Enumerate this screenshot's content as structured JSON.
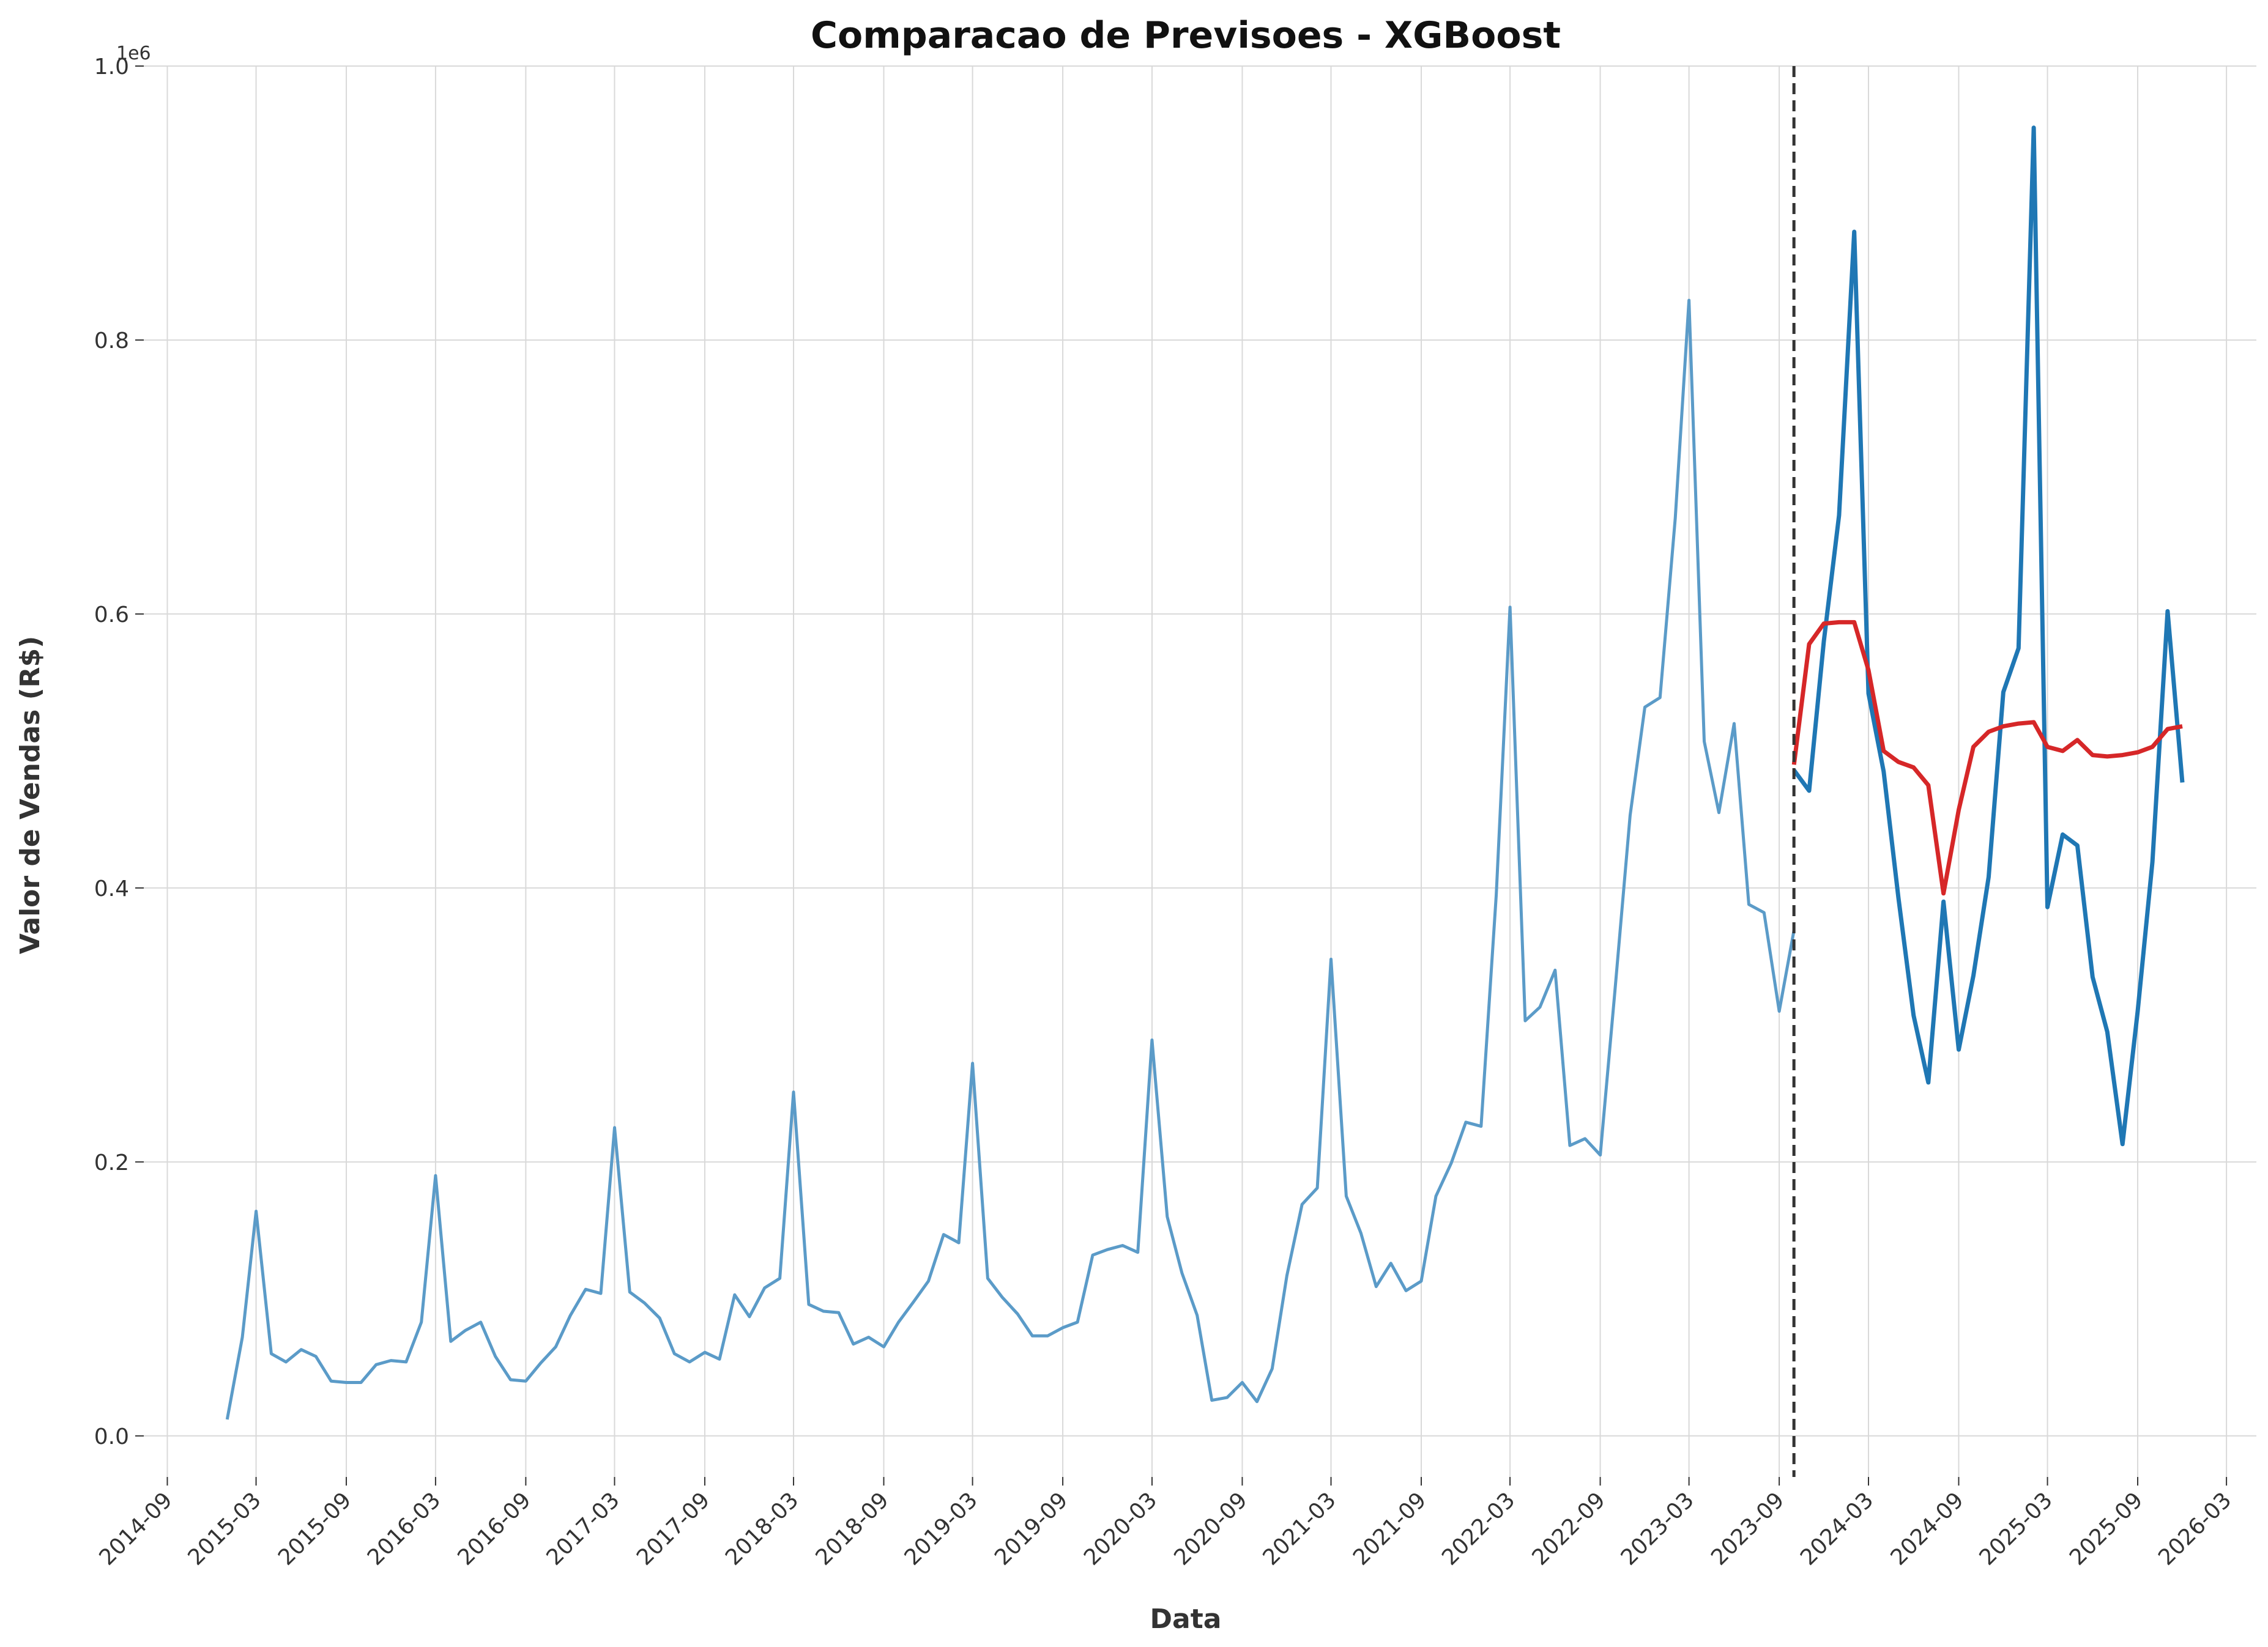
{
  "chart_data": {
    "type": "line",
    "title": "Comparacao de Previsoes - XGBoost",
    "xlabel": "Data",
    "ylabel": "Valor de Vendas (R$)",
    "y_offset_label": "1e6",
    "ylim": [
      -0.03,
      1.0
    ],
    "y_ticks": [
      0.0,
      0.2,
      0.4,
      0.6,
      0.8,
      1.0
    ],
    "y_tick_labels": [
      "0.0",
      "0.2",
      "0.4",
      "0.6",
      "0.8",
      "1.0"
    ],
    "x_range": [
      "2014-07-15",
      "2026-05-01"
    ],
    "x_ticks": [
      "2014-09-01",
      "2015-03-01",
      "2015-09-01",
      "2016-03-01",
      "2016-09-01",
      "2017-03-01",
      "2017-09-01",
      "2018-03-01",
      "2018-09-01",
      "2019-03-01",
      "2019-09-01",
      "2020-03-01",
      "2020-09-01",
      "2021-03-01",
      "2021-09-01",
      "2022-03-01",
      "2022-09-01",
      "2023-03-01",
      "2023-09-01",
      "2024-03-01",
      "2024-09-01",
      "2025-03-01",
      "2025-09-01",
      "2026-03-01"
    ],
    "x_tick_labels": [
      "2014-09",
      "2015-03",
      "2015-09",
      "2016-03",
      "2016-09",
      "2017-03",
      "2017-09",
      "2018-03",
      "2018-09",
      "2019-03",
      "2019-09",
      "2020-03",
      "2020-09",
      "2021-03",
      "2021-09",
      "2022-03",
      "2022-09",
      "2023-03",
      "2023-09",
      "2024-03",
      "2024-09",
      "2025-03",
      "2025-09",
      "2026-03"
    ],
    "split_date": "2023-10-01",
    "grid": true,
    "colors": {
      "history": "#5b9bc8",
      "actual": "#1f77b4",
      "forecast": "#d62728",
      "split": "#333333"
    },
    "series": [
      {
        "start": "2015-01-01",
        "values": [
          0.012,
          0.072,
          0.164,
          0.06,
          0.054,
          0.063,
          0.058,
          0.04,
          0.039,
          0.039,
          0.052,
          0.055,
          0.054,
          0.083,
          0.19,
          0.069,
          0.077,
          0.083,
          0.058,
          0.041,
          0.04,
          0.053,
          0.065,
          0.088,
          0.107,
          0.104,
          0.225,
          0.105,
          0.097,
          0.086,
          0.06,
          0.054,
          0.061,
          0.056,
          0.103,
          0.087,
          0.108,
          0.115,
          0.251,
          0.096,
          0.091,
          0.09,
          0.067,
          0.072,
          0.065,
          0.083,
          0.098,
          0.113,
          0.147,
          0.141,
          0.272,
          0.115,
          0.101,
          0.089,
          0.073,
          0.073,
          0.079,
          0.083,
          0.132,
          0.136,
          0.139,
          0.134,
          0.289,
          0.16,
          0.119,
          0.088,
          0.026,
          0.028,
          0.039,
          0.025,
          0.049,
          0.117,
          0.169,
          0.181,
          0.348,
          0.175,
          0.148,
          0.109,
          0.126,
          0.106,
          0.113,
          0.175,
          0.199,
          0.229,
          0.226,
          0.395,
          0.605,
          0.303,
          0.313,
          0.34,
          0.212,
          0.217,
          0.205,
          0.325,
          0.453,
          0.532,
          0.539,
          0.67,
          0.829,
          0.507,
          0.455,
          0.52,
          0.388,
          0.382,
          0.31,
          0.369
        ]
      },
      {
        "start": "2023-10-01",
        "values": [
          0.486,
          0.471,
          0.58,
          0.672,
          0.879,
          0.542,
          0.485,
          0.393,
          0.307,
          0.258,
          0.39,
          0.282,
          0.336,
          0.408,
          0.543,
          0.575,
          0.955,
          0.386,
          0.439,
          0.431,
          0.335,
          0.295,
          0.213,
          0.31,
          0.419,
          0.602,
          0.477
        ]
      },
      {
        "start": "2023-10-01",
        "values": [
          0.49,
          0.578,
          0.593,
          0.594,
          0.594,
          0.559,
          0.5,
          0.492,
          0.488,
          0.475,
          0.396,
          0.457,
          0.503,
          0.514,
          0.518,
          0.52,
          0.521,
          0.503,
          0.5,
          0.508,
          0.497,
          0.496,
          0.497,
          0.499,
          0.503,
          0.516,
          0.518
        ]
      }
    ]
  }
}
